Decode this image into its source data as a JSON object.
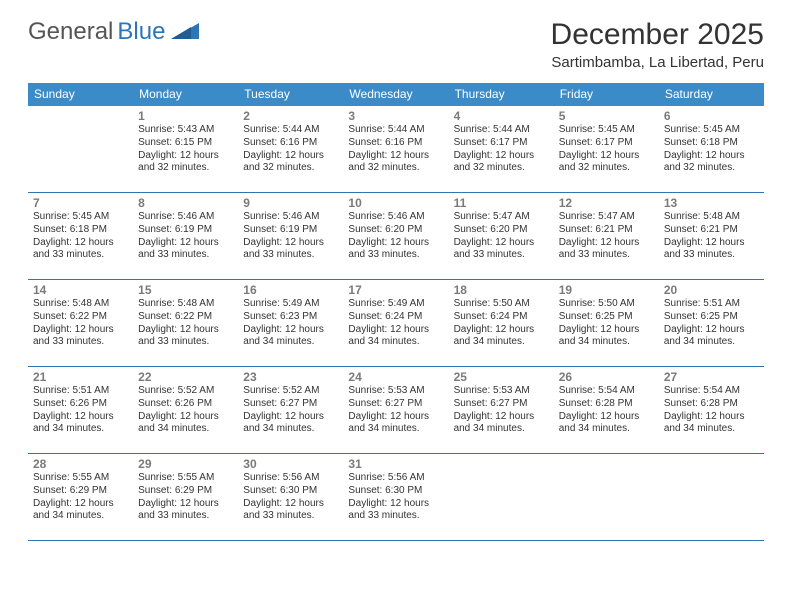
{
  "logo": {
    "word1": "General",
    "word2": "Blue"
  },
  "title": "December 2025",
  "subtitle": "Sartimbamba, La Libertad, Peru",
  "colors": {
    "header_bar": "#3b8bc9",
    "week_divider": "#2e75b6",
    "text": "#333333",
    "daynum": "#7a7a7a",
    "weekday_text": "#ffffff",
    "background": "#ffffff",
    "logo_gray": "#555555",
    "logo_blue": "#2e75b6"
  },
  "weekdays": [
    "Sunday",
    "Monday",
    "Tuesday",
    "Wednesday",
    "Thursday",
    "Friday",
    "Saturday"
  ],
  "weeks": [
    [
      null,
      {
        "d": "1",
        "sr": "Sunrise: 5:43 AM",
        "ss": "Sunset: 6:15 PM",
        "dl1": "Daylight: 12 hours",
        "dl2": "and 32 minutes."
      },
      {
        "d": "2",
        "sr": "Sunrise: 5:44 AM",
        "ss": "Sunset: 6:16 PM",
        "dl1": "Daylight: 12 hours",
        "dl2": "and 32 minutes."
      },
      {
        "d": "3",
        "sr": "Sunrise: 5:44 AM",
        "ss": "Sunset: 6:16 PM",
        "dl1": "Daylight: 12 hours",
        "dl2": "and 32 minutes."
      },
      {
        "d": "4",
        "sr": "Sunrise: 5:44 AM",
        "ss": "Sunset: 6:17 PM",
        "dl1": "Daylight: 12 hours",
        "dl2": "and 32 minutes."
      },
      {
        "d": "5",
        "sr": "Sunrise: 5:45 AM",
        "ss": "Sunset: 6:17 PM",
        "dl1": "Daylight: 12 hours",
        "dl2": "and 32 minutes."
      },
      {
        "d": "6",
        "sr": "Sunrise: 5:45 AM",
        "ss": "Sunset: 6:18 PM",
        "dl1": "Daylight: 12 hours",
        "dl2": "and 32 minutes."
      }
    ],
    [
      {
        "d": "7",
        "sr": "Sunrise: 5:45 AM",
        "ss": "Sunset: 6:18 PM",
        "dl1": "Daylight: 12 hours",
        "dl2": "and 33 minutes."
      },
      {
        "d": "8",
        "sr": "Sunrise: 5:46 AM",
        "ss": "Sunset: 6:19 PM",
        "dl1": "Daylight: 12 hours",
        "dl2": "and 33 minutes."
      },
      {
        "d": "9",
        "sr": "Sunrise: 5:46 AM",
        "ss": "Sunset: 6:19 PM",
        "dl1": "Daylight: 12 hours",
        "dl2": "and 33 minutes."
      },
      {
        "d": "10",
        "sr": "Sunrise: 5:46 AM",
        "ss": "Sunset: 6:20 PM",
        "dl1": "Daylight: 12 hours",
        "dl2": "and 33 minutes."
      },
      {
        "d": "11",
        "sr": "Sunrise: 5:47 AM",
        "ss": "Sunset: 6:20 PM",
        "dl1": "Daylight: 12 hours",
        "dl2": "and 33 minutes."
      },
      {
        "d": "12",
        "sr": "Sunrise: 5:47 AM",
        "ss": "Sunset: 6:21 PM",
        "dl1": "Daylight: 12 hours",
        "dl2": "and 33 minutes."
      },
      {
        "d": "13",
        "sr": "Sunrise: 5:48 AM",
        "ss": "Sunset: 6:21 PM",
        "dl1": "Daylight: 12 hours",
        "dl2": "and 33 minutes."
      }
    ],
    [
      {
        "d": "14",
        "sr": "Sunrise: 5:48 AM",
        "ss": "Sunset: 6:22 PM",
        "dl1": "Daylight: 12 hours",
        "dl2": "and 33 minutes."
      },
      {
        "d": "15",
        "sr": "Sunrise: 5:48 AM",
        "ss": "Sunset: 6:22 PM",
        "dl1": "Daylight: 12 hours",
        "dl2": "and 33 minutes."
      },
      {
        "d": "16",
        "sr": "Sunrise: 5:49 AM",
        "ss": "Sunset: 6:23 PM",
        "dl1": "Daylight: 12 hours",
        "dl2": "and 34 minutes."
      },
      {
        "d": "17",
        "sr": "Sunrise: 5:49 AM",
        "ss": "Sunset: 6:24 PM",
        "dl1": "Daylight: 12 hours",
        "dl2": "and 34 minutes."
      },
      {
        "d": "18",
        "sr": "Sunrise: 5:50 AM",
        "ss": "Sunset: 6:24 PM",
        "dl1": "Daylight: 12 hours",
        "dl2": "and 34 minutes."
      },
      {
        "d": "19",
        "sr": "Sunrise: 5:50 AM",
        "ss": "Sunset: 6:25 PM",
        "dl1": "Daylight: 12 hours",
        "dl2": "and 34 minutes."
      },
      {
        "d": "20",
        "sr": "Sunrise: 5:51 AM",
        "ss": "Sunset: 6:25 PM",
        "dl1": "Daylight: 12 hours",
        "dl2": "and 34 minutes."
      }
    ],
    [
      {
        "d": "21",
        "sr": "Sunrise: 5:51 AM",
        "ss": "Sunset: 6:26 PM",
        "dl1": "Daylight: 12 hours",
        "dl2": "and 34 minutes."
      },
      {
        "d": "22",
        "sr": "Sunrise: 5:52 AM",
        "ss": "Sunset: 6:26 PM",
        "dl1": "Daylight: 12 hours",
        "dl2": "and 34 minutes."
      },
      {
        "d": "23",
        "sr": "Sunrise: 5:52 AM",
        "ss": "Sunset: 6:27 PM",
        "dl1": "Daylight: 12 hours",
        "dl2": "and 34 minutes."
      },
      {
        "d": "24",
        "sr": "Sunrise: 5:53 AM",
        "ss": "Sunset: 6:27 PM",
        "dl1": "Daylight: 12 hours",
        "dl2": "and 34 minutes."
      },
      {
        "d": "25",
        "sr": "Sunrise: 5:53 AM",
        "ss": "Sunset: 6:27 PM",
        "dl1": "Daylight: 12 hours",
        "dl2": "and 34 minutes."
      },
      {
        "d": "26",
        "sr": "Sunrise: 5:54 AM",
        "ss": "Sunset: 6:28 PM",
        "dl1": "Daylight: 12 hours",
        "dl2": "and 34 minutes."
      },
      {
        "d": "27",
        "sr": "Sunrise: 5:54 AM",
        "ss": "Sunset: 6:28 PM",
        "dl1": "Daylight: 12 hours",
        "dl2": "and 34 minutes."
      }
    ],
    [
      {
        "d": "28",
        "sr": "Sunrise: 5:55 AM",
        "ss": "Sunset: 6:29 PM",
        "dl1": "Daylight: 12 hours",
        "dl2": "and 34 minutes."
      },
      {
        "d": "29",
        "sr": "Sunrise: 5:55 AM",
        "ss": "Sunset: 6:29 PM",
        "dl1": "Daylight: 12 hours",
        "dl2": "and 33 minutes."
      },
      {
        "d": "30",
        "sr": "Sunrise: 5:56 AM",
        "ss": "Sunset: 6:30 PM",
        "dl1": "Daylight: 12 hours",
        "dl2": "and 33 minutes."
      },
      {
        "d": "31",
        "sr": "Sunrise: 5:56 AM",
        "ss": "Sunset: 6:30 PM",
        "dl1": "Daylight: 12 hours",
        "dl2": "and 33 minutes."
      },
      null,
      null,
      null
    ]
  ]
}
